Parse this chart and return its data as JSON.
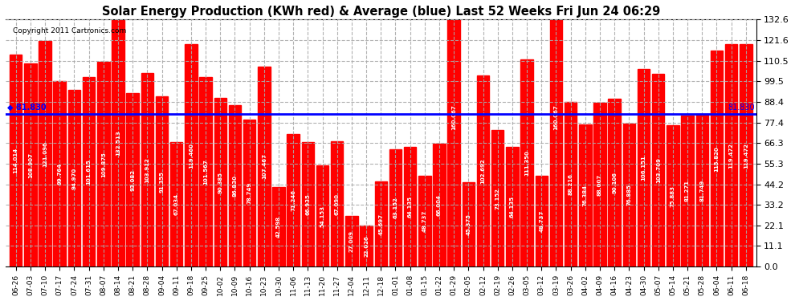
{
  "title": "Solar Energy Production (KWh red) & Average (blue) Last 52 Weeks Fri Jun 24 06:29",
  "copyright": "Copyright 2011 Cartronics.com",
  "bar_color": "#ff0000",
  "avg_line_color": "#0000ff",
  "avg_value": 81.83,
  "background_color": "#ffffff",
  "plot_bg_color": "#ffffff",
  "grid_color": "#aaaaaa",
  "ylim": [
    0,
    132.6
  ],
  "yticks": [
    0.0,
    11.1,
    22.1,
    33.2,
    44.2,
    55.3,
    66.3,
    77.4,
    88.4,
    99.5,
    110.5,
    121.6,
    132.6
  ],
  "categories": [
    "06-26",
    "07-03",
    "07-10",
    "07-17",
    "07-24",
    "07-31",
    "08-07",
    "08-14",
    "08-21",
    "08-28",
    "09-04",
    "09-11",
    "09-18",
    "09-25",
    "10-02",
    "10-09",
    "10-16",
    "10-23",
    "10-30",
    "11-06",
    "11-13",
    "11-20",
    "11-27",
    "12-04",
    "12-11",
    "12-18",
    "01-01",
    "01-08",
    "01-15",
    "01-22",
    "01-29",
    "02-05",
    "02-12",
    "02-19",
    "02-26",
    "03-05",
    "03-12",
    "03-19",
    "03-26",
    "04-02",
    "04-09",
    "04-16",
    "04-23",
    "04-30",
    "05-07",
    "05-14",
    "05-21",
    "05-28",
    "06-04",
    "06-11",
    "06-18"
  ],
  "values": [
    114.014,
    108.907,
    121.096,
    99.764,
    94.97,
    101.615,
    109.875,
    132.513,
    93.082,
    103.912,
    91.355,
    67.034,
    119.46,
    101.567,
    90.385,
    86.83,
    78.749,
    107.467,
    42.598,
    71.246,
    66.935,
    54.153,
    67.09,
    27.009,
    22.026,
    45.697,
    63.152,
    64.135,
    48.737,
    66.004,
    160.067,
    45.375,
    102.692,
    73.152,
    64.135,
    111.35,
    48.737,
    160.067,
    88.216,
    76.384,
    88.007,
    90.106,
    76.885,
    106.151,
    103.709,
    75.883,
    81.271,
    81.749,
    115.82,
    119.472,
    119.472
  ]
}
